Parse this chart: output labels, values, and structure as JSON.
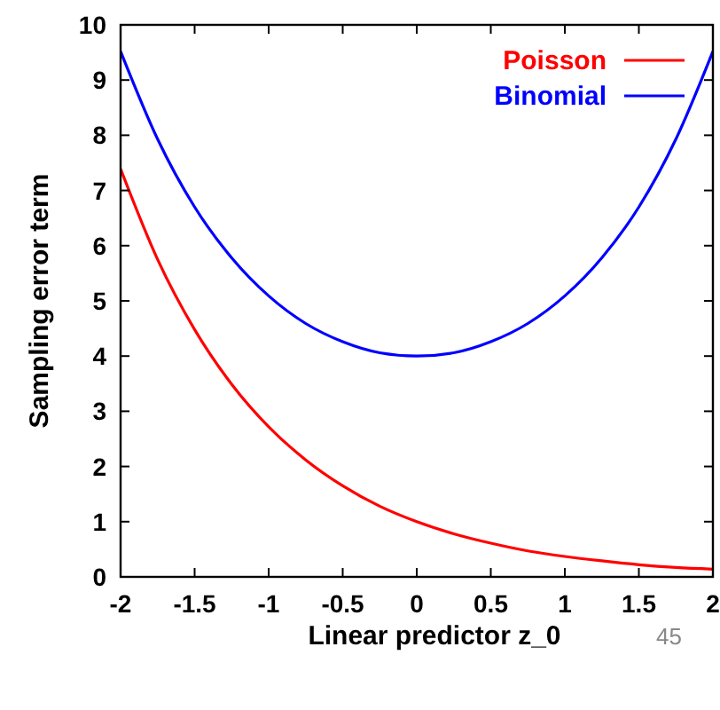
{
  "chart_data": {
    "type": "line",
    "xlabel": "Linear predictor z_0",
    "ylabel": "Sampling error term",
    "x": [
      -2,
      -1.75,
      -1.5,
      -1.25,
      -1,
      -0.75,
      -0.5,
      -0.25,
      0,
      0.25,
      0.5,
      0.75,
      1,
      1.25,
      1.5,
      1.75,
      2
    ],
    "series": [
      {
        "name": "Poisson",
        "color": "#ff0000",
        "values": [
          7.39,
          5.75,
          4.48,
          3.49,
          2.72,
          2.12,
          1.65,
          1.28,
          1,
          0.78,
          0.61,
          0.47,
          0.37,
          0.29,
          0.22,
          0.17,
          0.14
        ]
      },
      {
        "name": "Binomial",
        "color": "#0000ff",
        "values": [
          9.52,
          7.93,
          6.7,
          5.78,
          5.09,
          4.59,
          4.26,
          4.06,
          4,
          4.06,
          4.26,
          4.59,
          5.09,
          5.78,
          6.7,
          7.93,
          9.52
        ]
      }
    ],
    "xlim": [
      -2,
      2
    ],
    "xticks": [
      -2,
      -1.5,
      -1,
      -0.5,
      0,
      0.5,
      1,
      1.5,
      2
    ],
    "ylim": [
      0,
      10
    ],
    "yticks": [
      0,
      1,
      2,
      3,
      4,
      5,
      6,
      7,
      8,
      9,
      10
    ],
    "grid": false,
    "legend": "top right",
    "line_style": "solid",
    "annotations": [
      "45"
    ]
  }
}
